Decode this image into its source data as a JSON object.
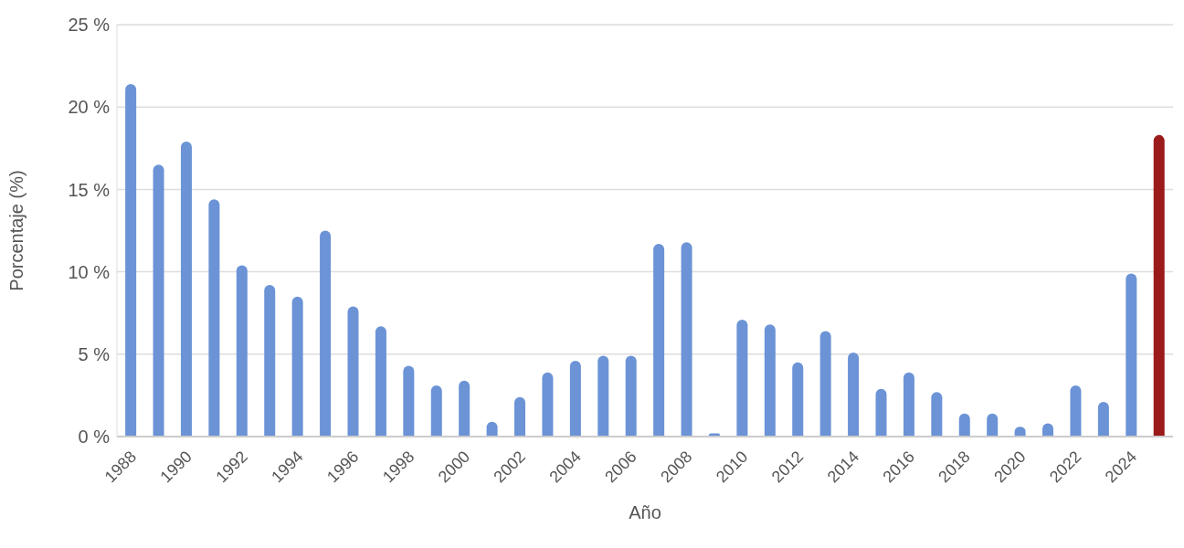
{
  "chart_data": {
    "type": "bar",
    "xlabel": "Año",
    "ylabel": "Porcentaje (%)",
    "categories": [
      "1988",
      null,
      "1990",
      null,
      "1992",
      null,
      "1994",
      null,
      "1996",
      null,
      "1998",
      null,
      "2000",
      null,
      "2002",
      null,
      "2004",
      null,
      "2006",
      null,
      "2008",
      null,
      "2010",
      null,
      "2012",
      null,
      "2014",
      null,
      "2016",
      null,
      "2018",
      null,
      "2020",
      null,
      "2022",
      null,
      "2024",
      null
    ],
    "values": [
      21.4,
      16.5,
      17.9,
      14.4,
      10.4,
      9.2,
      8.5,
      12.5,
      7.9,
      6.7,
      4.3,
      3.1,
      3.4,
      0.9,
      2.4,
      3.9,
      4.6,
      4.9,
      4.9,
      11.7,
      11.8,
      0.2,
      7.1,
      6.8,
      4.5,
      6.4,
      5.1,
      2.9,
      3.9,
      2.7,
      1.4,
      1.4,
      0.6,
      0.8,
      3.1,
      2.1,
      9.9,
      18.3
    ],
    "colors": [
      "#6b93d6",
      "#6b93d6",
      "#6b93d6",
      "#6b93d6",
      "#6b93d6",
      "#6b93d6",
      "#6b93d6",
      "#6b93d6",
      "#6b93d6",
      "#6b93d6",
      "#6b93d6",
      "#6b93d6",
      "#6b93d6",
      "#6b93d6",
      "#6b93d6",
      "#6b93d6",
      "#6b93d6",
      "#6b93d6",
      "#6b93d6",
      "#6b93d6",
      "#6b93d6",
      "#6b93d6",
      "#6b93d6",
      "#6b93d6",
      "#6b93d6",
      "#6b93d6",
      "#6b93d6",
      "#6b93d6",
      "#6b93d6",
      "#6b93d6",
      "#6b93d6",
      "#6b93d6",
      "#6b93d6",
      "#6b93d6",
      "#6b93d6",
      "#6b93d6",
      "#6b93d6",
      "#9b1b1b"
    ],
    "ylim": [
      0,
      25
    ],
    "yticks": [
      {
        "value": 0,
        "label": "0 %"
      },
      {
        "value": 5,
        "label": "5 %"
      },
      {
        "value": 10,
        "label": "10 %"
      },
      {
        "value": 15,
        "label": "15 %"
      },
      {
        "value": 20,
        "label": "20 %"
      },
      {
        "value": 25,
        "label": "25 %"
      }
    ],
    "grid": "y"
  }
}
